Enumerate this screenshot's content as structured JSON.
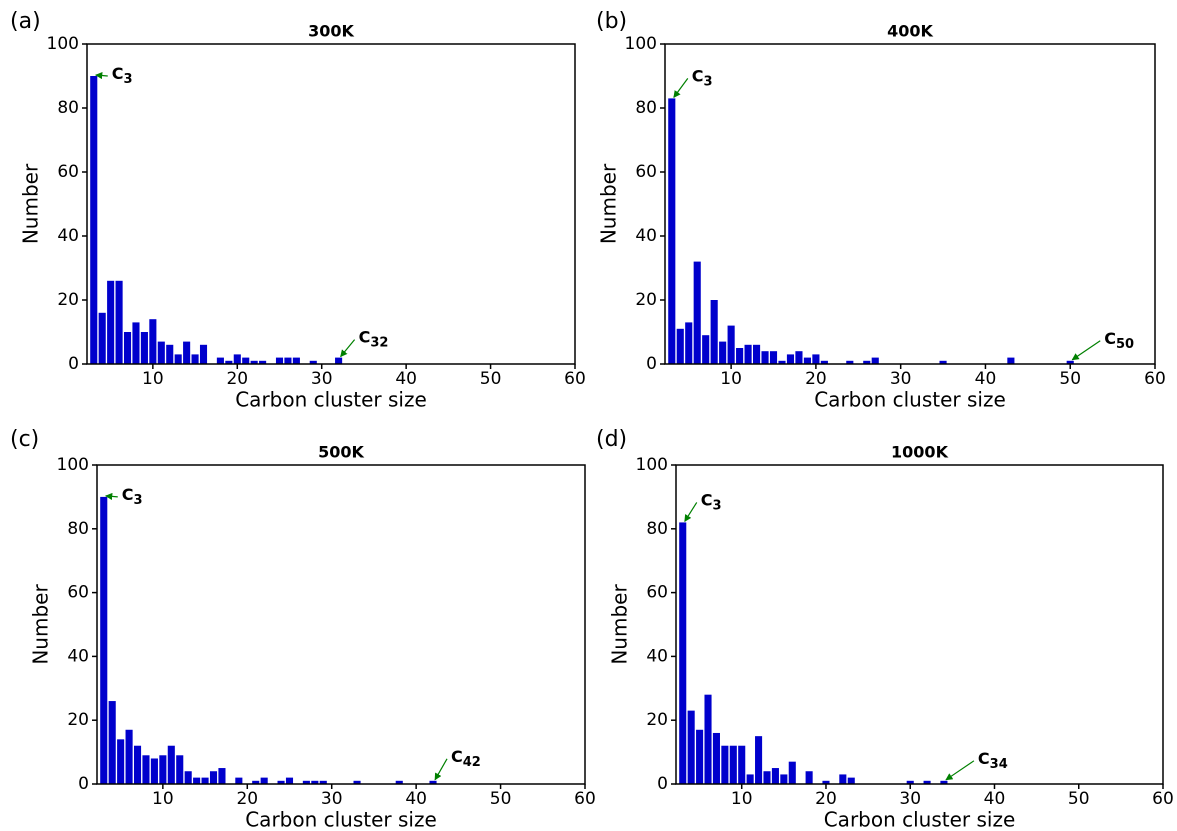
{
  "chart_data": [
    {
      "type": "bar",
      "panel": "(a)",
      "title": "300K",
      "x_label": "Carbon cluster size",
      "y_label": "Number",
      "color": "#0000cc",
      "x": [
        3,
        4,
        5,
        6,
        7,
        8,
        9,
        10,
        11,
        12,
        13,
        14,
        15,
        16,
        18,
        19,
        20,
        21,
        22,
        23,
        25,
        26,
        27,
        29,
        32
      ],
      "values": [
        90,
        16,
        26,
        26,
        10,
        13,
        10,
        14,
        7,
        6,
        3,
        7,
        3,
        6,
        2,
        1,
        3,
        2,
        1,
        1,
        2,
        2,
        2,
        1,
        2
      ],
      "xlim": [
        2.2,
        60
      ],
      "ylim": [
        0,
        100
      ],
      "xticks": [
        10,
        20,
        30,
        40,
        50,
        60
      ],
      "yticks": [
        0,
        20,
        40,
        60,
        80,
        100
      ],
      "annotations": [
        {
          "label": "C",
          "subscript": "3",
          "x": 3,
          "y": 90
        },
        {
          "label": "C",
          "subscript": "32",
          "x": 32,
          "y": 2
        }
      ]
    },
    {
      "type": "bar",
      "panel": "(b)",
      "title": "400K",
      "x_label": "Carbon cluster size",
      "y_label": "Number",
      "color": "#0000cc",
      "x": [
        3,
        4,
        5,
        6,
        7,
        8,
        9,
        10,
        11,
        12,
        13,
        14,
        15,
        16,
        17,
        18,
        19,
        20,
        21,
        24,
        26,
        27,
        35,
        43,
        50
      ],
      "values": [
        83,
        11,
        13,
        32,
        9,
        20,
        7,
        12,
        5,
        6,
        6,
        4,
        4,
        1,
        3,
        4,
        2,
        3,
        1,
        1,
        1,
        2,
        1,
        2,
        1
      ],
      "xlim": [
        2.2,
        60
      ],
      "ylim": [
        0,
        100
      ],
      "xticks": [
        10,
        20,
        30,
        40,
        50,
        60
      ],
      "yticks": [
        0,
        20,
        40,
        60,
        80,
        100
      ],
      "annotations": [
        {
          "label": "C",
          "subscript": "3",
          "x": 3,
          "y": 83
        },
        {
          "label": "C",
          "subscript": "50",
          "x": 50,
          "y": 1
        }
      ]
    },
    {
      "type": "bar",
      "panel": "(c)",
      "title": "500K",
      "x_label": "Carbon cluster size",
      "y_label": "Number",
      "color": "#0000cc",
      "x": [
        3,
        4,
        5,
        6,
        7,
        8,
        9,
        10,
        11,
        12,
        13,
        14,
        15,
        16,
        17,
        19,
        21,
        22,
        24,
        25,
        27,
        28,
        29,
        33,
        38,
        42
      ],
      "values": [
        90,
        26,
        14,
        17,
        12,
        9,
        8,
        9,
        12,
        9,
        4,
        2,
        2,
        4,
        5,
        2,
        1,
        2,
        1,
        2,
        1,
        1,
        1,
        1,
        1,
        1
      ],
      "xlim": [
        2.2,
        60
      ],
      "ylim": [
        0,
        100
      ],
      "xticks": [
        10,
        20,
        30,
        40,
        50,
        60
      ],
      "yticks": [
        0,
        20,
        40,
        60,
        80,
        100
      ],
      "annotations": [
        {
          "label": "C",
          "subscript": "3",
          "x": 3,
          "y": 90
        },
        {
          "label": "C",
          "subscript": "42",
          "x": 42,
          "y": 1
        }
      ]
    },
    {
      "type": "bar",
      "panel": "(d)",
      "title": "1000K",
      "x_label": "Carbon cluster size",
      "y_label": "Number",
      "color": "#0000cc",
      "x": [
        3,
        4,
        5,
        6,
        7,
        8,
        9,
        10,
        11,
        12,
        13,
        14,
        15,
        16,
        18,
        20,
        22,
        23,
        30,
        32,
        34
      ],
      "values": [
        82,
        23,
        17,
        28,
        16,
        12,
        12,
        12,
        3,
        15,
        4,
        5,
        3,
        7,
        4,
        1,
        3,
        2,
        1,
        1,
        1
      ],
      "xlim": [
        2.2,
        60
      ],
      "ylim": [
        0,
        100
      ],
      "xticks": [
        10,
        20,
        30,
        40,
        50,
        60
      ],
      "yticks": [
        0,
        20,
        40,
        60,
        80,
        100
      ],
      "annotations": [
        {
          "label": "C",
          "subscript": "3",
          "x": 3,
          "y": 82
        },
        {
          "label": "C",
          "subscript": "34",
          "x": 34,
          "y": 1
        }
      ]
    }
  ]
}
